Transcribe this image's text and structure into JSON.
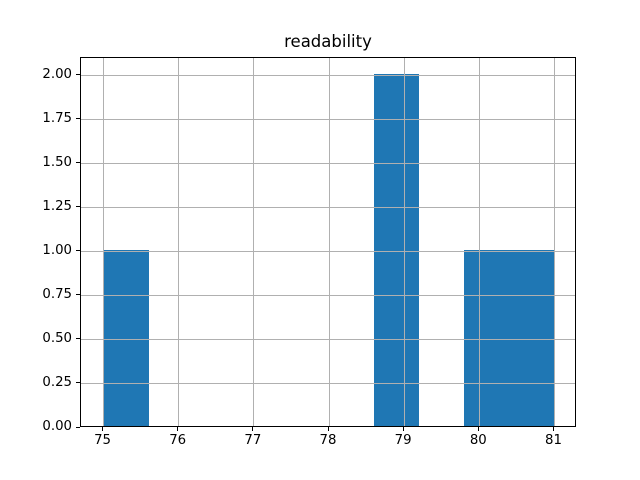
{
  "chart_data": {
    "type": "bar",
    "subtype": "histogram",
    "title": "readability",
    "xlabel": "",
    "ylabel": "",
    "bin_edges": [
      75.0,
      75.6,
      76.2,
      76.8,
      77.4,
      78.0,
      78.6,
      79.2,
      79.8,
      80.4,
      81.0
    ],
    "counts": [
      1,
      0,
      0,
      0,
      0,
      0,
      2,
      0,
      1,
      1
    ],
    "xlim": [
      74.7,
      81.3
    ],
    "ylim": [
      0,
      2.1
    ],
    "x_ticks": [
      {
        "value": 75,
        "label": "75"
      },
      {
        "value": 76,
        "label": "76"
      },
      {
        "value": 77,
        "label": "77"
      },
      {
        "value": 78,
        "label": "78"
      },
      {
        "value": 79,
        "label": "79"
      },
      {
        "value": 80,
        "label": "80"
      },
      {
        "value": 81,
        "label": "81"
      }
    ],
    "y_ticks": [
      {
        "value": 0.0,
        "label": "0.00"
      },
      {
        "value": 0.25,
        "label": "0.25"
      },
      {
        "value": 0.5,
        "label": "0.50"
      },
      {
        "value": 0.75,
        "label": "0.75"
      },
      {
        "value": 1.0,
        "label": "1.00"
      },
      {
        "value": 1.25,
        "label": "1.25"
      },
      {
        "value": 1.5,
        "label": "1.50"
      },
      {
        "value": 1.75,
        "label": "1.75"
      },
      {
        "value": 2.0,
        "label": "2.00"
      }
    ],
    "grid": true,
    "grid_above_bars": true,
    "legend": null,
    "colors": {
      "bar_fill": "#1f77b4",
      "grid": "#b0b0b0",
      "spine": "#000000",
      "text": "#000000",
      "background": "#ffffff"
    }
  }
}
